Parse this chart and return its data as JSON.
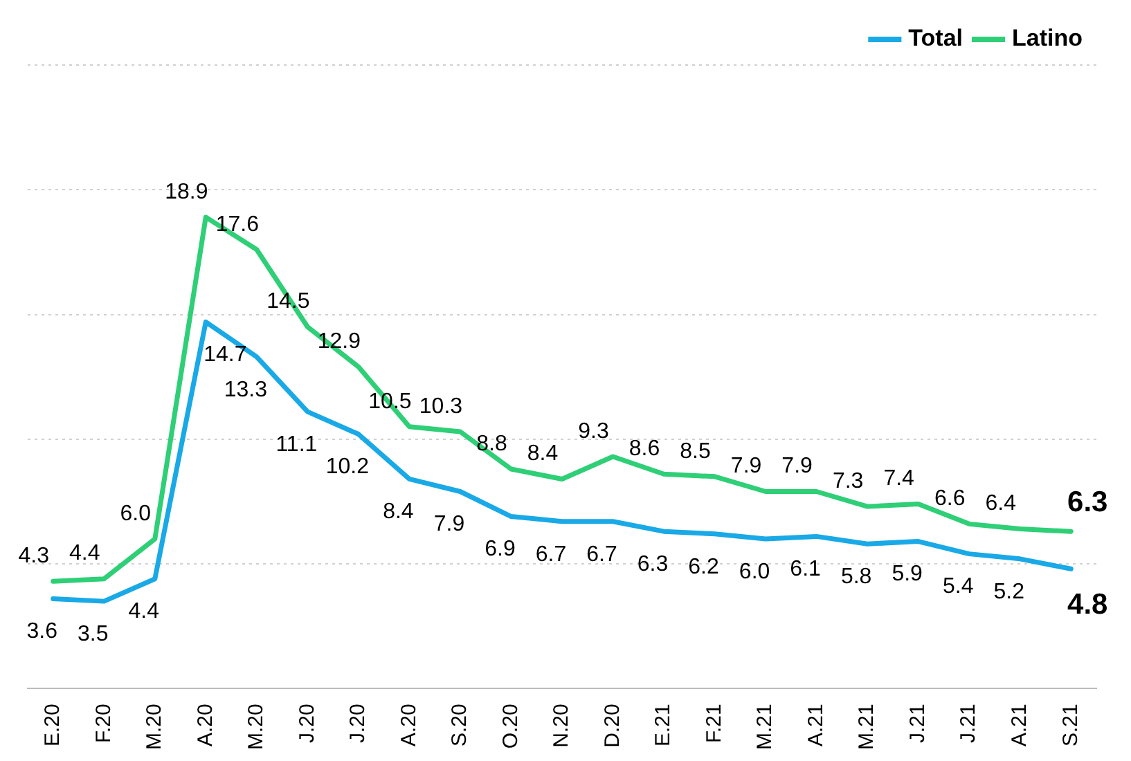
{
  "chart_data": {
    "type": "line",
    "categories": [
      "E.20",
      "F.20",
      "M.20",
      "A.20",
      "M.20",
      "J.20",
      "J.20",
      "A.20",
      "S.20",
      "O.20",
      "N.20",
      "D.20",
      "E.21",
      "F.21",
      "M.21",
      "A.21",
      "M.21",
      "J.21",
      "J.21",
      "A.21",
      "S.21"
    ],
    "series": [
      {
        "name": "Total",
        "color": "#19a9e6",
        "values": [
          3.6,
          3.5,
          4.4,
          14.7,
          13.3,
          11.1,
          10.2,
          8.4,
          7.9,
          6.9,
          6.7,
          6.7,
          6.3,
          6.2,
          6.0,
          6.1,
          5.8,
          5.9,
          5.4,
          5.2,
          4.8
        ],
        "value_labels": [
          "3.6",
          "3.5",
          "4.4",
          "14.7",
          "13.3",
          "11.1",
          "10.2",
          "8.4",
          "7.9",
          "6.9",
          "6.7",
          "6.7",
          "6.3",
          "6.2",
          "6.0",
          "6.1",
          "5.8",
          "5.9",
          "5.4",
          "5.2",
          "4.8"
        ]
      },
      {
        "name": "Latino",
        "color": "#2ecf76",
        "values": [
          4.3,
          4.4,
          6.0,
          18.9,
          17.6,
          14.5,
          12.9,
          10.5,
          10.3,
          8.8,
          8.4,
          9.3,
          8.6,
          8.5,
          7.9,
          7.9,
          7.3,
          7.4,
          6.6,
          6.4,
          6.3
        ],
        "value_labels": [
          "4.3",
          "4.4",
          "6.0",
          "18.9",
          "17.6",
          "14.5",
          "12.9",
          "10.5",
          "10.3",
          "8.8",
          "8.4",
          "9.3",
          "8.6",
          "8.5",
          "7.9",
          "7.9",
          "7.3",
          "7.4",
          "6.6",
          "6.4",
          "6.3"
        ]
      }
    ],
    "ylim": [
      0,
      25
    ],
    "yticks": [
      {
        "value": 0,
        "label": null
      },
      {
        "value": 5,
        "label": null
      },
      {
        "value": 10,
        "label": null
      },
      {
        "value": 15,
        "label": null
      },
      {
        "value": 20,
        "label": null
      },
      {
        "value": 25,
        "label": null
      }
    ],
    "grid": "y",
    "tick_labels": "x",
    "legend": "top right",
    "marker": "none",
    "line_style": "solid"
  }
}
